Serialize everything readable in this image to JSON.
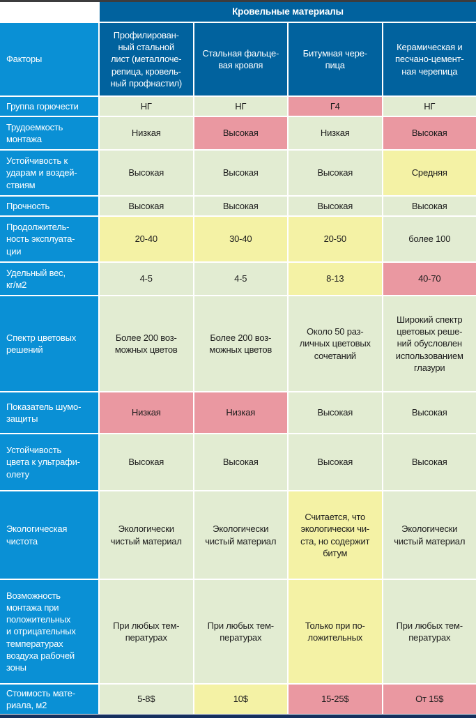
{
  "colors": {
    "dark_blue": "#01629e",
    "bright_blue": "#0a90d5",
    "green": "#e2ecd2",
    "yellow": "#f4f2a5",
    "pink": "#ea98a1",
    "top_bar": "#3c3c3e",
    "bottom_bar": "#15305e",
    "text_dark": "#1c1c1c"
  },
  "header": {
    "group_title": "Кровельные материалы",
    "corner_label": "Факторы",
    "columns": [
      "Профилирован-\nный стальной\nлист (металлоче-\nрепица, кровель-\nный профнастил)",
      "Стальная фальце-\nвая кровля",
      "Битумная чере-\nпица",
      "Керамическая и\nпесчано-цемент-\nная черепица"
    ]
  },
  "rows": [
    {
      "factor": "Группа горючести",
      "cells": [
        {
          "text": "НГ",
          "tone": "green"
        },
        {
          "text": "НГ",
          "tone": "green"
        },
        {
          "text": "Г4",
          "tone": "pink"
        },
        {
          "text": "НГ",
          "tone": "green"
        }
      ]
    },
    {
      "factor": "Трудоемкость\nмонтажа",
      "cells": [
        {
          "text": "Низкая",
          "tone": "green"
        },
        {
          "text": "Высокая",
          "tone": "pink"
        },
        {
          "text": "Низкая",
          "tone": "green"
        },
        {
          "text": "Высокая",
          "tone": "pink"
        }
      ]
    },
    {
      "factor": "Устойчивость к\nударам и воздей-\nствиям",
      "cells": [
        {
          "text": "Высокая",
          "tone": "green"
        },
        {
          "text": "Высокая",
          "tone": "green"
        },
        {
          "text": "Высокая",
          "tone": "green"
        },
        {
          "text": "Средняя",
          "tone": "yellow"
        }
      ]
    },
    {
      "factor": "Прочность",
      "cells": [
        {
          "text": "Высокая",
          "tone": "green"
        },
        {
          "text": "Высокая",
          "tone": "green"
        },
        {
          "text": "Высокая",
          "tone": "green"
        },
        {
          "text": "Высокая",
          "tone": "green"
        }
      ]
    },
    {
      "factor": "Продолжитель-\nность эксплуата-\nции",
      "cells": [
        {
          "text": "20-40",
          "tone": "yellow"
        },
        {
          "text": "30-40",
          "tone": "yellow"
        },
        {
          "text": "20-50",
          "tone": "yellow"
        },
        {
          "text": "более 100",
          "tone": "green"
        }
      ]
    },
    {
      "factor": "Удельный вес,\nкг/м2",
      "cells": [
        {
          "text": "4-5",
          "tone": "green"
        },
        {
          "text": "4-5",
          "tone": "green"
        },
        {
          "text": "8-13",
          "tone": "yellow"
        },
        {
          "text": "40-70",
          "tone": "pink"
        }
      ]
    },
    {
      "factor": "Спектр цветовых\nрешений",
      "cells": [
        {
          "text": "Более 200 воз-\nможных цветов",
          "tone": "green"
        },
        {
          "text": "Более 200 воз-\nможных цветов",
          "tone": "green"
        },
        {
          "text": "Около 50 раз-\nличных цветовых\nсочетаний",
          "tone": "green"
        },
        {
          "text": "Широкий спектр\nцветовых реше-\nний обусловлен\nиспользованием\nглазури",
          "tone": "green"
        }
      ]
    },
    {
      "factor": "Показатель шумо-\nзащиты",
      "cells": [
        {
          "text": "Низкая",
          "tone": "pink"
        },
        {
          "text": "Низкая",
          "tone": "pink"
        },
        {
          "text": "Высокая",
          "tone": "green"
        },
        {
          "text": "Высокая",
          "tone": "green"
        }
      ]
    },
    {
      "factor": "Устойчивость\nцвета к ультрафи-\nолету",
      "cells": [
        {
          "text": "Высокая",
          "tone": "green"
        },
        {
          "text": "Высокая",
          "tone": "green"
        },
        {
          "text": "Высокая",
          "tone": "green"
        },
        {
          "text": "Высокая",
          "tone": "green"
        }
      ]
    },
    {
      "factor": "Экологическая\nчистота",
      "cells": [
        {
          "text": "Экологически\nчистый материал",
          "tone": "green"
        },
        {
          "text": "Экологически\nчистый материал",
          "tone": "green"
        },
        {
          "text": "Считается, что\nэкологически чи-\nста, но содержит\nбитум",
          "tone": "yellow"
        },
        {
          "text": "Экологически\nчистый материал",
          "tone": "green"
        }
      ]
    },
    {
      "factor": "Возможность\nмонтажа при\nположительных\nи отрицательных\nтемпературах\nвоздуха рабочей\nзоны",
      "cells": [
        {
          "text": "При любых тем-\nпературах",
          "tone": "green"
        },
        {
          "text": "При любых тем-\nпературах",
          "tone": "green"
        },
        {
          "text": "Только при по-\nложительных",
          "tone": "yellow"
        },
        {
          "text": "При любых тем-\nпературах",
          "tone": "green"
        }
      ]
    },
    {
      "factor": "Стоимость мате-\nриала, м2",
      "cells": [
        {
          "text": "5-8$",
          "tone": "green"
        },
        {
          "text": "10$",
          "tone": "yellow"
        },
        {
          "text": "15-25$",
          "tone": "pink"
        },
        {
          "text": "От 15$",
          "tone": "pink"
        }
      ]
    }
  ]
}
